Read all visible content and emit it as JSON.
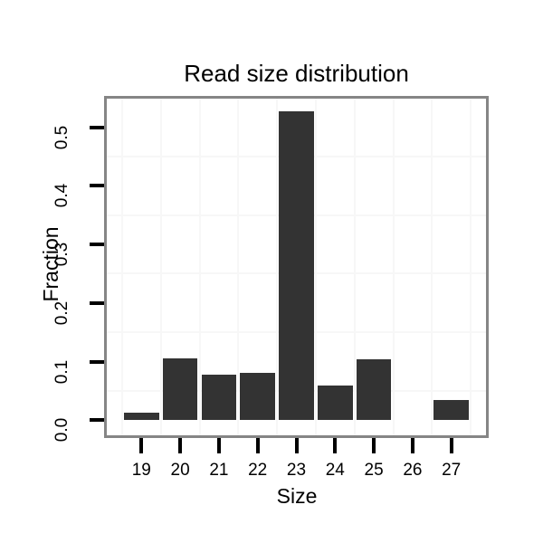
{
  "chart_data": {
    "type": "bar",
    "title": "Read size distribution",
    "xlabel": "Size",
    "ylabel": "Fraction",
    "categories": [
      19,
      20,
      21,
      22,
      23,
      24,
      25,
      26,
      27
    ],
    "values": [
      0.013,
      0.106,
      0.078,
      0.081,
      0.527,
      0.059,
      0.104,
      0,
      0.035
    ],
    "x_tick_labels": [
      "19",
      "20",
      "21",
      "22",
      "23",
      "24",
      "25",
      "26",
      "27"
    ],
    "y_tick_labels": [
      "0.0",
      "0.1",
      "0.2",
      "0.3",
      "0.4",
      "0.5"
    ],
    "y_tick_values": [
      0,
      0.1,
      0.2,
      0.3,
      0.4,
      0.5
    ],
    "xlim": [
      18.105,
      27.895
    ],
    "ylim": [
      -0.026,
      0.549
    ],
    "bar_width": 0.9,
    "grid": "faint minor gridlines only (x at half-integers, y at 0.05 offsets)",
    "legend": "none",
    "colors": {
      "bar": "#333333",
      "plot_border": "#858585",
      "gridline": "#f7f7f7",
      "text": "#000000",
      "background": "#ffffff"
    }
  }
}
